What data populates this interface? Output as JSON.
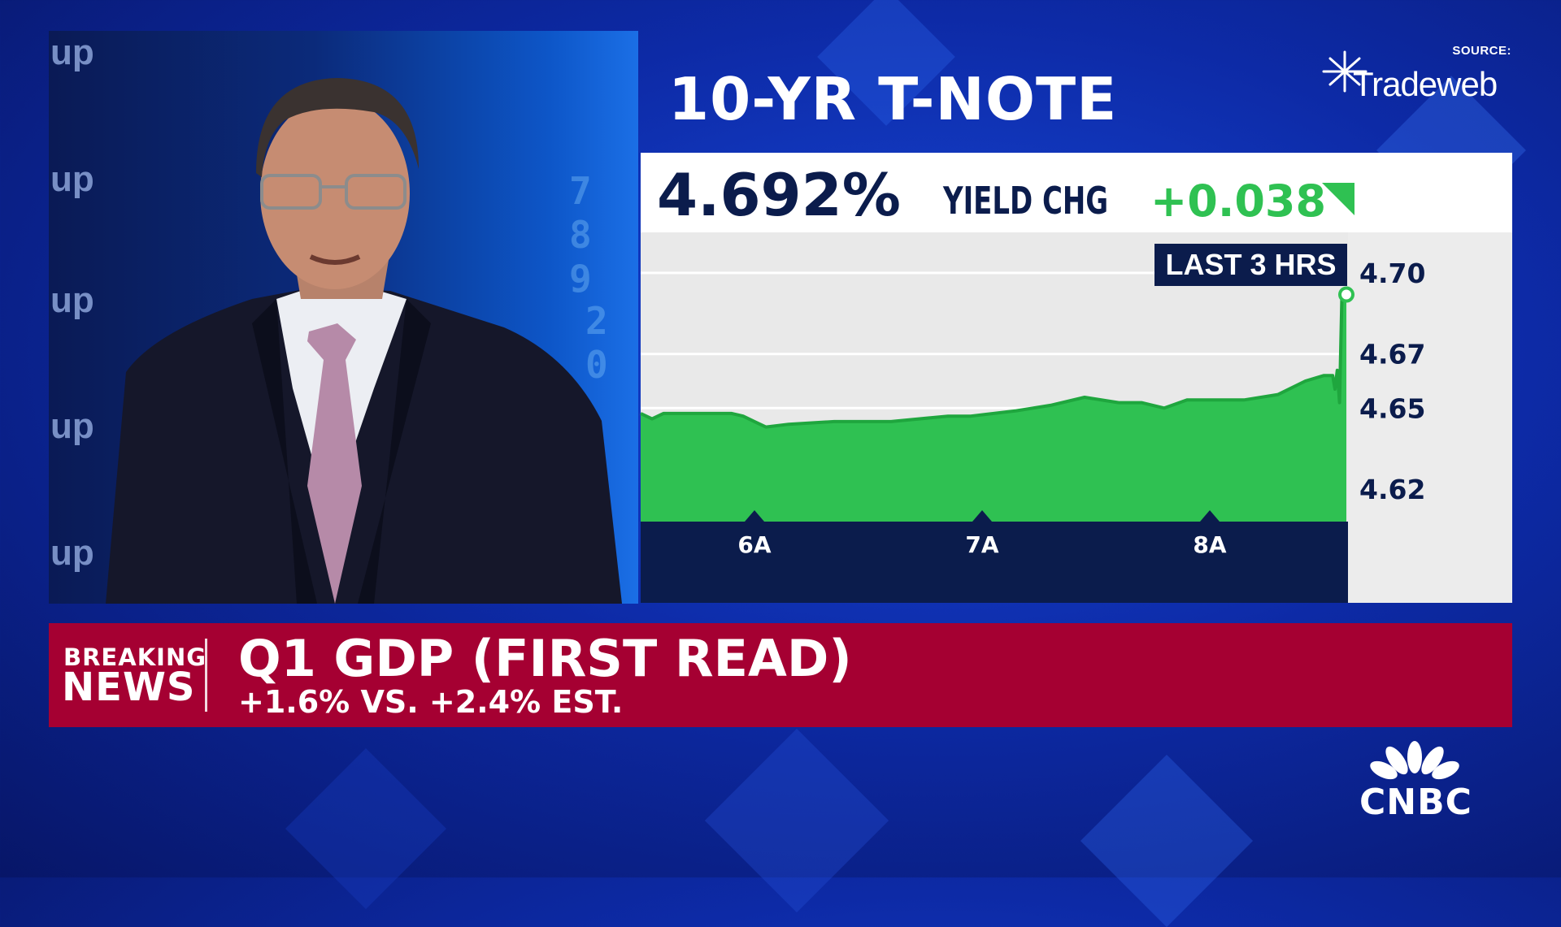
{
  "colors": {
    "accent_green": "#2fc152",
    "navy": "#0b1c4c",
    "breaking_red": "#a50032"
  },
  "video": {
    "wall_words": [
      "up",
      "up",
      "up",
      "up",
      "up"
    ]
  },
  "chart": {
    "title": "10-YR T-NOTE",
    "source_label": "SOURCE:",
    "source_name": "Tradeweb"
  },
  "stat": {
    "yield": "4.692%",
    "change_label": "YIELD CHG",
    "change_value": "+0.038",
    "direction_icon": "triangle-up-icon"
  },
  "chart_data": {
    "type": "area",
    "title": "10-YR T-NOTE",
    "range_label": "LAST 3 HRS",
    "x_tick_labels": [
      "6A",
      "7A",
      "8A"
    ],
    "x_ticks": [
      6,
      7,
      8
    ],
    "xlim": [
      5.5,
      8.6
    ],
    "y_ticks": [
      4.62,
      4.65,
      4.67,
      4.7
    ],
    "y_tick_labels": [
      "4.62",
      "4.65",
      "4.67",
      "4.70"
    ],
    "ylim": [
      4.608,
      4.715
    ],
    "grid": true,
    "series": [
      {
        "x": [
          5.5,
          5.55,
          5.6,
          5.9,
          5.95,
          6.0,
          6.05,
          6.15,
          6.35,
          6.6,
          6.85,
          6.95,
          7.15,
          7.3,
          7.45,
          7.6,
          7.7,
          7.8,
          7.9,
          8.0,
          8.15,
          8.3,
          8.42,
          8.5,
          8.54,
          8.55,
          8.56,
          8.57,
          8.58,
          8.6
        ],
        "y": [
          4.648,
          4.646,
          4.648,
          4.648,
          4.647,
          4.645,
          4.643,
          4.644,
          4.645,
          4.645,
          4.647,
          4.647,
          4.649,
          4.651,
          4.654,
          4.652,
          4.652,
          4.65,
          4.653,
          4.653,
          4.653,
          4.655,
          4.66,
          4.662,
          4.662,
          4.657,
          4.664,
          4.652,
          4.69,
          4.692
        ]
      }
    ],
    "last_point": {
      "x": 8.6,
      "y": 4.692
    }
  },
  "news": {
    "tag_line1": "BREAKING",
    "tag_line2": "NEWS",
    "headline": "Q1 GDP (FIRST READ)",
    "subline": "+1.6% VS. +2.4% EST."
  },
  "network": {
    "name": "CNBC",
    "logo_icon": "peacock-logo-icon"
  }
}
